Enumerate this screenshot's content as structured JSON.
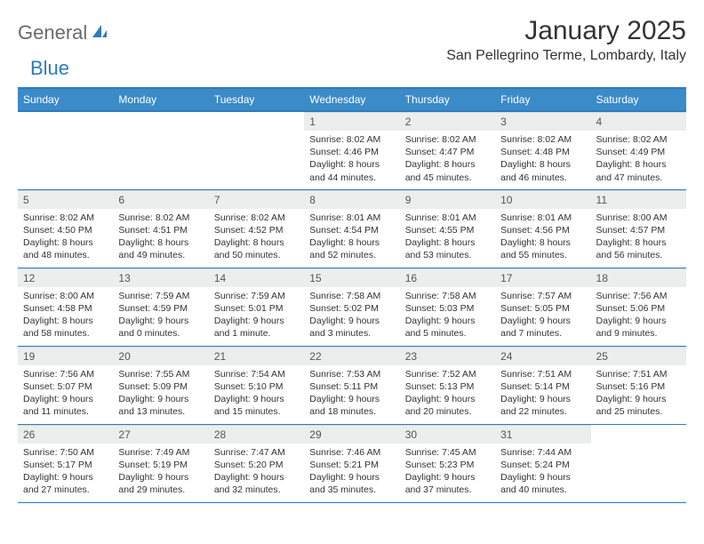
{
  "logo": {
    "part1": "General",
    "part2": "Blue"
  },
  "header": {
    "title": "January 2025",
    "location": "San Pellegrino Terme, Lombardy, Italy"
  },
  "colors": {
    "header_bg": "#3b8bc9",
    "header_border": "#2f7bbf",
    "daynum_bg": "#eceded",
    "text": "#333333",
    "logo_gray": "#6a6a6a",
    "logo_blue": "#2f7bbf"
  },
  "weekdays": [
    "Sunday",
    "Monday",
    "Tuesday",
    "Wednesday",
    "Thursday",
    "Friday",
    "Saturday"
  ],
  "weeks": [
    [
      null,
      null,
      null,
      {
        "day": "1",
        "sunrise": "Sunrise: 8:02 AM",
        "sunset": "Sunset: 4:46 PM",
        "daylight1": "Daylight: 8 hours",
        "daylight2": "and 44 minutes."
      },
      {
        "day": "2",
        "sunrise": "Sunrise: 8:02 AM",
        "sunset": "Sunset: 4:47 PM",
        "daylight1": "Daylight: 8 hours",
        "daylight2": "and 45 minutes."
      },
      {
        "day": "3",
        "sunrise": "Sunrise: 8:02 AM",
        "sunset": "Sunset: 4:48 PM",
        "daylight1": "Daylight: 8 hours",
        "daylight2": "and 46 minutes."
      },
      {
        "day": "4",
        "sunrise": "Sunrise: 8:02 AM",
        "sunset": "Sunset: 4:49 PM",
        "daylight1": "Daylight: 8 hours",
        "daylight2": "and 47 minutes."
      }
    ],
    [
      {
        "day": "5",
        "sunrise": "Sunrise: 8:02 AM",
        "sunset": "Sunset: 4:50 PM",
        "daylight1": "Daylight: 8 hours",
        "daylight2": "and 48 minutes."
      },
      {
        "day": "6",
        "sunrise": "Sunrise: 8:02 AM",
        "sunset": "Sunset: 4:51 PM",
        "daylight1": "Daylight: 8 hours",
        "daylight2": "and 49 minutes."
      },
      {
        "day": "7",
        "sunrise": "Sunrise: 8:02 AM",
        "sunset": "Sunset: 4:52 PM",
        "daylight1": "Daylight: 8 hours",
        "daylight2": "and 50 minutes."
      },
      {
        "day": "8",
        "sunrise": "Sunrise: 8:01 AM",
        "sunset": "Sunset: 4:54 PM",
        "daylight1": "Daylight: 8 hours",
        "daylight2": "and 52 minutes."
      },
      {
        "day": "9",
        "sunrise": "Sunrise: 8:01 AM",
        "sunset": "Sunset: 4:55 PM",
        "daylight1": "Daylight: 8 hours",
        "daylight2": "and 53 minutes."
      },
      {
        "day": "10",
        "sunrise": "Sunrise: 8:01 AM",
        "sunset": "Sunset: 4:56 PM",
        "daylight1": "Daylight: 8 hours",
        "daylight2": "and 55 minutes."
      },
      {
        "day": "11",
        "sunrise": "Sunrise: 8:00 AM",
        "sunset": "Sunset: 4:57 PM",
        "daylight1": "Daylight: 8 hours",
        "daylight2": "and 56 minutes."
      }
    ],
    [
      {
        "day": "12",
        "sunrise": "Sunrise: 8:00 AM",
        "sunset": "Sunset: 4:58 PM",
        "daylight1": "Daylight: 8 hours",
        "daylight2": "and 58 minutes."
      },
      {
        "day": "13",
        "sunrise": "Sunrise: 7:59 AM",
        "sunset": "Sunset: 4:59 PM",
        "daylight1": "Daylight: 9 hours",
        "daylight2": "and 0 minutes."
      },
      {
        "day": "14",
        "sunrise": "Sunrise: 7:59 AM",
        "sunset": "Sunset: 5:01 PM",
        "daylight1": "Daylight: 9 hours",
        "daylight2": "and 1 minute."
      },
      {
        "day": "15",
        "sunrise": "Sunrise: 7:58 AM",
        "sunset": "Sunset: 5:02 PM",
        "daylight1": "Daylight: 9 hours",
        "daylight2": "and 3 minutes."
      },
      {
        "day": "16",
        "sunrise": "Sunrise: 7:58 AM",
        "sunset": "Sunset: 5:03 PM",
        "daylight1": "Daylight: 9 hours",
        "daylight2": "and 5 minutes."
      },
      {
        "day": "17",
        "sunrise": "Sunrise: 7:57 AM",
        "sunset": "Sunset: 5:05 PM",
        "daylight1": "Daylight: 9 hours",
        "daylight2": "and 7 minutes."
      },
      {
        "day": "18",
        "sunrise": "Sunrise: 7:56 AM",
        "sunset": "Sunset: 5:06 PM",
        "daylight1": "Daylight: 9 hours",
        "daylight2": "and 9 minutes."
      }
    ],
    [
      {
        "day": "19",
        "sunrise": "Sunrise: 7:56 AM",
        "sunset": "Sunset: 5:07 PM",
        "daylight1": "Daylight: 9 hours",
        "daylight2": "and 11 minutes."
      },
      {
        "day": "20",
        "sunrise": "Sunrise: 7:55 AM",
        "sunset": "Sunset: 5:09 PM",
        "daylight1": "Daylight: 9 hours",
        "daylight2": "and 13 minutes."
      },
      {
        "day": "21",
        "sunrise": "Sunrise: 7:54 AM",
        "sunset": "Sunset: 5:10 PM",
        "daylight1": "Daylight: 9 hours",
        "daylight2": "and 15 minutes."
      },
      {
        "day": "22",
        "sunrise": "Sunrise: 7:53 AM",
        "sunset": "Sunset: 5:11 PM",
        "daylight1": "Daylight: 9 hours",
        "daylight2": "and 18 minutes."
      },
      {
        "day": "23",
        "sunrise": "Sunrise: 7:52 AM",
        "sunset": "Sunset: 5:13 PM",
        "daylight1": "Daylight: 9 hours",
        "daylight2": "and 20 minutes."
      },
      {
        "day": "24",
        "sunrise": "Sunrise: 7:51 AM",
        "sunset": "Sunset: 5:14 PM",
        "daylight1": "Daylight: 9 hours",
        "daylight2": "and 22 minutes."
      },
      {
        "day": "25",
        "sunrise": "Sunrise: 7:51 AM",
        "sunset": "Sunset: 5:16 PM",
        "daylight1": "Daylight: 9 hours",
        "daylight2": "and 25 minutes."
      }
    ],
    [
      {
        "day": "26",
        "sunrise": "Sunrise: 7:50 AM",
        "sunset": "Sunset: 5:17 PM",
        "daylight1": "Daylight: 9 hours",
        "daylight2": "and 27 minutes."
      },
      {
        "day": "27",
        "sunrise": "Sunrise: 7:49 AM",
        "sunset": "Sunset: 5:19 PM",
        "daylight1": "Daylight: 9 hours",
        "daylight2": "and 29 minutes."
      },
      {
        "day": "28",
        "sunrise": "Sunrise: 7:47 AM",
        "sunset": "Sunset: 5:20 PM",
        "daylight1": "Daylight: 9 hours",
        "daylight2": "and 32 minutes."
      },
      {
        "day": "29",
        "sunrise": "Sunrise: 7:46 AM",
        "sunset": "Sunset: 5:21 PM",
        "daylight1": "Daylight: 9 hours",
        "daylight2": "and 35 minutes."
      },
      {
        "day": "30",
        "sunrise": "Sunrise: 7:45 AM",
        "sunset": "Sunset: 5:23 PM",
        "daylight1": "Daylight: 9 hours",
        "daylight2": "and 37 minutes."
      },
      {
        "day": "31",
        "sunrise": "Sunrise: 7:44 AM",
        "sunset": "Sunset: 5:24 PM",
        "daylight1": "Daylight: 9 hours",
        "daylight2": "and 40 minutes."
      },
      null
    ]
  ]
}
